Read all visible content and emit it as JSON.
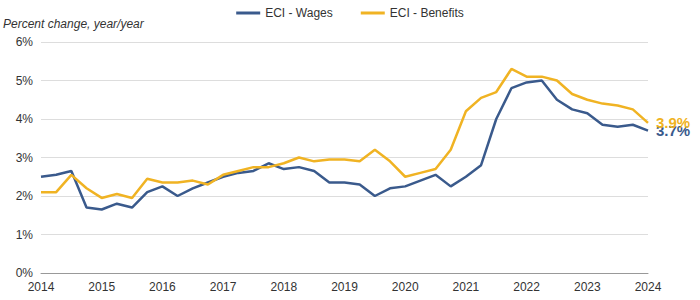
{
  "chart_data": {
    "type": "line",
    "y_label": "Percent change, year/year",
    "x": [
      2014,
      2014.25,
      2014.5,
      2014.75,
      2015,
      2015.25,
      2015.5,
      2015.75,
      2016,
      2016.25,
      2016.5,
      2016.75,
      2017,
      2017.25,
      2017.5,
      2017.75,
      2018,
      2018.25,
      2018.5,
      2018.75,
      2019,
      2019.25,
      2019.5,
      2019.75,
      2020,
      2020.25,
      2020.5,
      2020.75,
      2021,
      2021.25,
      2021.5,
      2021.75,
      2022,
      2022.25,
      2022.5,
      2022.75,
      2023,
      2023.25,
      2023.5,
      2023.75,
      2024
    ],
    "series": [
      {
        "name": "ECI - Wages",
        "color": "#3a5a8c",
        "values": [
          2.5,
          2.55,
          2.65,
          1.7,
          1.65,
          1.8,
          1.7,
          2.1,
          2.25,
          2.0,
          2.2,
          2.35,
          2.5,
          2.6,
          2.65,
          2.85,
          2.7,
          2.75,
          2.65,
          2.35,
          2.35,
          2.3,
          2.0,
          2.2,
          2.25,
          2.4,
          2.55,
          2.25,
          2.5,
          2.8,
          4.0,
          4.8,
          4.95,
          5.0,
          4.5,
          4.25,
          4.15,
          3.85,
          3.8,
          3.85,
          3.7
        ]
      },
      {
        "name": "ECI - Benefits",
        "color": "#f0b323",
        "values": [
          2.1,
          2.1,
          2.55,
          2.2,
          1.95,
          2.05,
          1.95,
          2.45,
          2.35,
          2.35,
          2.4,
          2.3,
          2.55,
          2.65,
          2.75,
          2.75,
          2.85,
          3.0,
          2.9,
          2.95,
          2.95,
          2.9,
          3.2,
          2.9,
          2.5,
          2.6,
          2.7,
          3.2,
          4.2,
          4.55,
          4.7,
          5.3,
          5.1,
          5.1,
          5.0,
          4.65,
          4.5,
          4.4,
          4.35,
          4.25,
          3.9
        ]
      }
    ],
    "annotations": [
      {
        "text": "3.9%",
        "x": 2024,
        "y": 3.9,
        "series": "ECI - Benefits"
      },
      {
        "text": "3.7%",
        "x": 2024,
        "y": 3.7,
        "series": "ECI - Wages"
      }
    ],
    "xlim": [
      2014,
      2024
    ],
    "xticks": [
      2014,
      2015,
      2016,
      2017,
      2018,
      2019,
      2020,
      2021,
      2022,
      2023,
      2024
    ],
    "ylim": [
      0,
      6
    ],
    "yticks": [
      {
        "value": 0,
        "label": "0%"
      },
      {
        "value": 1,
        "label": "1%"
      },
      {
        "value": 2,
        "label": "2%"
      },
      {
        "value": 3,
        "label": "3%"
      },
      {
        "value": 4,
        "label": "4%"
      },
      {
        "value": 5,
        "label": "5%"
      },
      {
        "value": 6,
        "label": "6%"
      }
    ],
    "grid": true,
    "legend": "top"
  }
}
